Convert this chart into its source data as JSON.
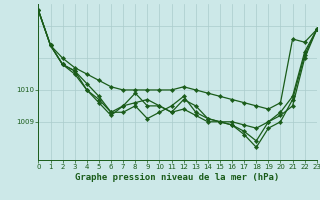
{
  "background_color": "#cce8e8",
  "grid_color": "#aacccc",
  "line_color": "#1a5c1a",
  "marker_color": "#1a5c1a",
  "title": "Graphe pression niveau de la mer (hPa)",
  "xlim": [
    0,
    23
  ],
  "ylim": [
    1007.8,
    1012.7
  ],
  "yticks": [
    1009,
    1010
  ],
  "xticks": [
    0,
    1,
    2,
    3,
    4,
    5,
    6,
    7,
    8,
    9,
    10,
    11,
    12,
    13,
    14,
    15,
    16,
    17,
    18,
    19,
    20,
    21,
    22,
    23
  ],
  "series": [
    [
      1012.5,
      1011.4,
      1011.0,
      1010.7,
      1010.5,
      1010.3,
      1010.1,
      1010.0,
      1010.0,
      1010.0,
      1010.0,
      1010.0,
      1010.1,
      1010.0,
      1009.9,
      1009.8,
      1009.7,
      1009.6,
      1009.5,
      1009.4,
      1009.6,
      1011.6,
      1011.5,
      1011.9
    ],
    [
      1012.5,
      1011.4,
      1010.8,
      1010.6,
      1010.0,
      1009.6,
      1009.2,
      1009.5,
      1009.9,
      1009.5,
      1009.5,
      1009.3,
      1009.4,
      1009.2,
      1009.0,
      1009.0,
      1009.0,
      1008.9,
      1008.8,
      1009.0,
      1009.2,
      1009.5,
      1011.0,
      1011.9
    ],
    [
      1012.5,
      1011.4,
      1010.8,
      1010.5,
      1010.0,
      1009.7,
      1009.3,
      1009.3,
      1009.5,
      1009.1,
      1009.3,
      1009.5,
      1009.8,
      1009.3,
      1009.1,
      1009.0,
      1008.9,
      1008.7,
      1008.4,
      1009.0,
      1009.3,
      1009.8,
      1011.2,
      1011.9
    ],
    [
      1012.5,
      1011.4,
      1010.8,
      1010.6,
      1010.2,
      1009.8,
      1009.3,
      1009.5,
      1009.6,
      1009.7,
      1009.5,
      1009.3,
      1009.7,
      1009.5,
      1009.1,
      1009.0,
      1008.9,
      1008.6,
      1008.2,
      1008.8,
      1009.0,
      1009.7,
      1011.1,
      1011.9
    ]
  ],
  "marker_size": 2.2,
  "line_width": 0.9,
  "title_fontsize": 6.5,
  "tick_fontsize": 5.0
}
